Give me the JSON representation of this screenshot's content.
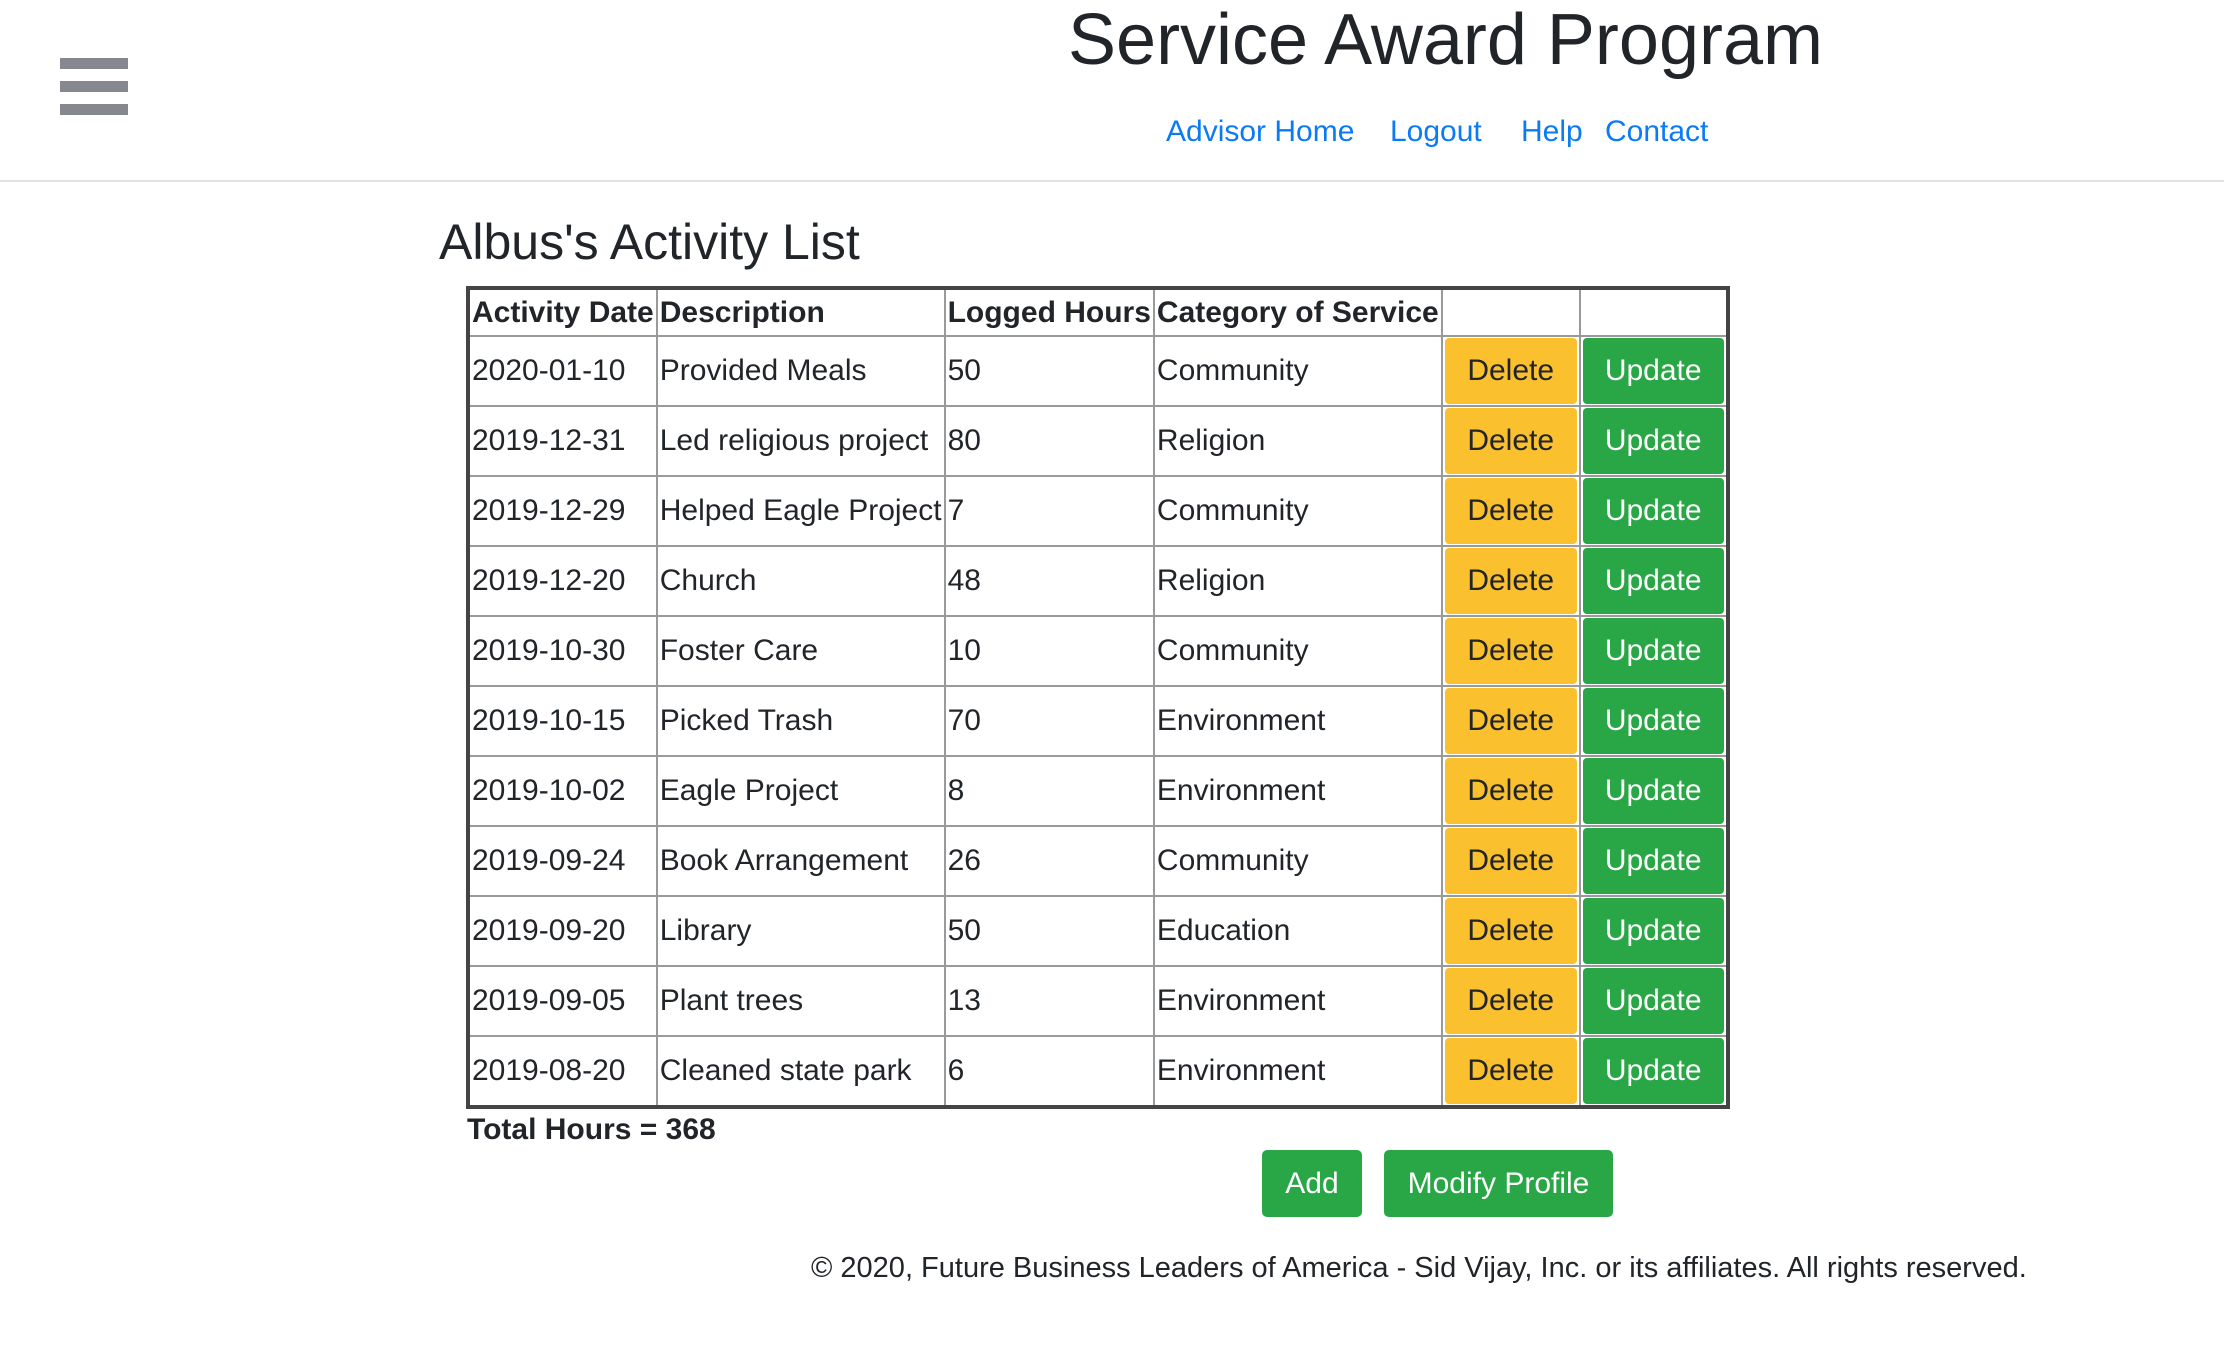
{
  "header": {
    "site_title": "Service Award Program",
    "menu_icon": "hamburger-menu-icon",
    "nav": [
      {
        "label": "Advisor Home"
      },
      {
        "label": "Logout"
      },
      {
        "label": "Help"
      },
      {
        "label": "Contact"
      }
    ],
    "link_color": "#0a7bf4"
  },
  "main": {
    "title": "Albus's Activity List",
    "table": {
      "columns": [
        "Activity Date",
        "Description",
        "Logged Hours",
        "Category of Service",
        "",
        ""
      ],
      "delete_label": "Delete",
      "update_label": "Update",
      "rows": [
        {
          "date": "2020-01-10",
          "description": "Provided Meals",
          "hours": "50",
          "category": "Community"
        },
        {
          "date": "2019-12-31",
          "description": "Led religious project",
          "hours": "80",
          "category": "Religion"
        },
        {
          "date": "2019-12-29",
          "description": "Helped Eagle Project",
          "hours": "7",
          "category": "Community"
        },
        {
          "date": "2019-12-20",
          "description": "Church",
          "hours": "48",
          "category": "Religion"
        },
        {
          "date": "2019-10-30",
          "description": "Foster Care",
          "hours": "10",
          "category": "Community"
        },
        {
          "date": "2019-10-15",
          "description": "Picked Trash",
          "hours": "70",
          "category": "Environment"
        },
        {
          "date": "2019-10-02",
          "description": "Eagle Project",
          "hours": "8",
          "category": "Environment"
        },
        {
          "date": "2019-09-24",
          "description": "Book Arrangement",
          "hours": "26",
          "category": "Community"
        },
        {
          "date": "2019-09-20",
          "description": "Library",
          "hours": "50",
          "category": "Education"
        },
        {
          "date": "2019-09-05",
          "description": "Plant trees",
          "hours": "13",
          "category": "Environment"
        },
        {
          "date": "2019-08-20",
          "description": "Cleaned state park",
          "hours": "6",
          "category": "Environment"
        }
      ]
    },
    "total_label": "Total Hours = 368",
    "add_label": "Add",
    "modify_profile_label": "Modify Profile",
    "colors": {
      "delete": "#fbc02d",
      "update": "#29a645"
    }
  },
  "footer": {
    "text": "© 2020, Future Business Leaders of America - Sid Vijay, Inc. or its affiliates. All rights reserved."
  }
}
